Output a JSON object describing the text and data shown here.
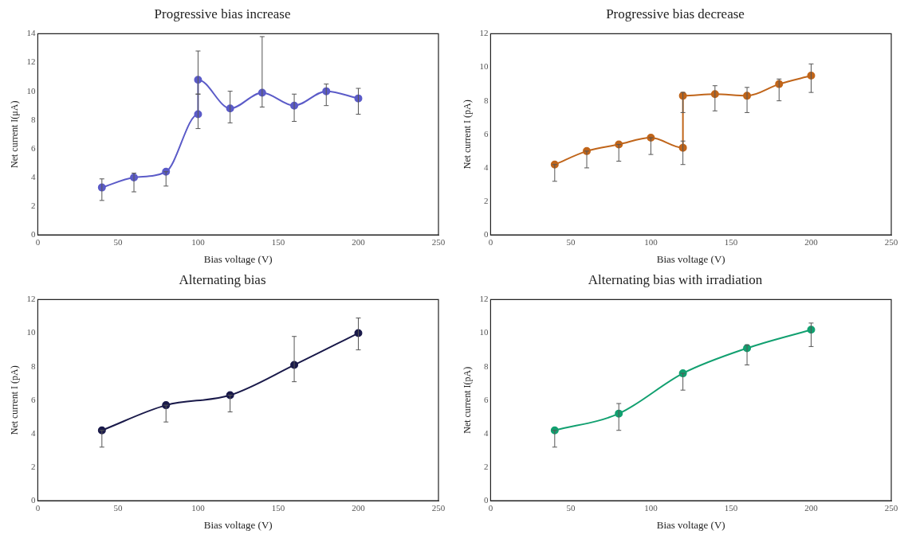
{
  "chart_data": [
    {
      "type": "line",
      "title": "Progressive bias increase",
      "xlabel": "Bias voltage (V)",
      "ylabel": "Net current I(μA)",
      "xlim": [
        0,
        250
      ],
      "xticks": [
        0,
        50,
        100,
        150,
        200,
        250
      ],
      "ylim": [
        0,
        14
      ],
      "yticks": [
        0,
        2,
        4,
        6,
        8,
        10,
        12,
        14
      ],
      "grid": false,
      "marker": "circle",
      "legend": false,
      "series": [
        {
          "color": "#5b5bc8",
          "x": [
            40,
            60,
            80,
            100,
            100,
            120,
            140,
            160,
            180,
            200
          ],
          "values": [
            3.3,
            4.0,
            4.4,
            8.4,
            10.8,
            8.8,
            9.9,
            9.0,
            10.0,
            9.5
          ],
          "errors": [
            [
              2.4,
              3.9
            ],
            [
              3.0,
              4.3
            ],
            [
              3.4,
              4.4
            ],
            [
              7.4,
              9.8
            ],
            [
              9.8,
              12.8
            ],
            [
              7.8,
              10.0
            ],
            [
              8.9,
              13.8
            ],
            [
              7.9,
              9.8
            ],
            [
              9.0,
              10.5
            ],
            [
              8.4,
              10.2
            ]
          ]
        }
      ]
    },
    {
      "type": "line",
      "title": "Progressive bias decrease",
      "xlabel": "Bias voltage (V)",
      "ylabel": "Net current I (pA)",
      "xlim": [
        0,
        250
      ],
      "xticks": [
        0,
        50,
        100,
        150,
        200,
        250
      ],
      "ylim": [
        0,
        12
      ],
      "yticks": [
        0,
        2,
        4,
        6,
        8,
        10,
        12
      ],
      "grid": false,
      "marker": "circle",
      "legend": false,
      "series": [
        {
          "color": "#c0651a",
          "x": [
            40,
            60,
            80,
            100,
            120,
            120,
            140,
            160,
            180,
            200
          ],
          "values": [
            4.2,
            5.0,
            5.4,
            5.8,
            5.2,
            8.3,
            8.4,
            8.3,
            9.0,
            9.5
          ],
          "errors": [
            [
              3.2,
              4.2
            ],
            [
              4.0,
              5.0
            ],
            [
              4.4,
              5.4
            ],
            [
              4.8,
              5.8
            ],
            [
              4.2,
              5.6
            ],
            [
              7.3,
              8.5
            ],
            [
              7.4,
              8.9
            ],
            [
              7.3,
              8.8
            ],
            [
              8.0,
              9.3
            ],
            [
              8.5,
              10.2
            ]
          ]
        }
      ]
    },
    {
      "type": "line",
      "title": "Alternating bias",
      "xlabel": "Bias voltage (V)",
      "ylabel": "Net current I (pA)",
      "xlim": [
        0,
        250
      ],
      "xticks": [
        0,
        50,
        100,
        150,
        200,
        250
      ],
      "ylim": [
        0,
        12
      ],
      "yticks": [
        0,
        2,
        4,
        6,
        8,
        10,
        12
      ],
      "grid": false,
      "marker": "circle",
      "legend": false,
      "series": [
        {
          "color": "#1a1a4a",
          "x": [
            40,
            80,
            120,
            160,
            200
          ],
          "values": [
            4.2,
            5.7,
            6.3,
            8.1,
            10.0
          ],
          "errors": [
            [
              3.2,
              4.2
            ],
            [
              4.7,
              5.7
            ],
            [
              5.3,
              6.3
            ],
            [
              7.1,
              9.8
            ],
            [
              9.0,
              10.9
            ]
          ]
        }
      ]
    },
    {
      "type": "line",
      "title": "Alternating bias with irradiation",
      "xlabel": "Bias voltage (V)",
      "ylabel": "Net current I(pA)",
      "xlim": [
        0,
        250
      ],
      "xticks": [
        0,
        50,
        100,
        150,
        200,
        250
      ],
      "ylim": [
        0,
        12
      ],
      "yticks": [
        0,
        2,
        4,
        6,
        8,
        10,
        12
      ],
      "grid": false,
      "marker": "circle",
      "legend": false,
      "series": [
        {
          "color": "#12a070",
          "x": [
            40,
            80,
            120,
            160,
            200
          ],
          "values": [
            4.2,
            5.2,
            7.6,
            9.1,
            10.2
          ],
          "errors": [
            [
              3.2,
              4.2
            ],
            [
              4.2,
              5.8
            ],
            [
              6.6,
              7.6
            ],
            [
              8.1,
              9.3
            ],
            [
              9.2,
              10.6
            ]
          ]
        }
      ]
    }
  ]
}
